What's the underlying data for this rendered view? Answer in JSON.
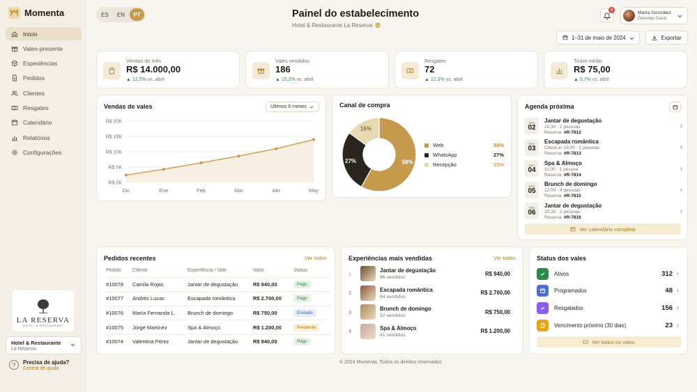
{
  "brand": {
    "name": "Momenta"
  },
  "nav": [
    {
      "label": "Início",
      "icon": "home-icon",
      "active": true
    },
    {
      "label": "Vales-presente",
      "icon": "gift-icon"
    },
    {
      "label": "Experiências",
      "icon": "cube-icon"
    },
    {
      "label": "Pedidos",
      "icon": "document-icon"
    },
    {
      "label": "Clientes",
      "icon": "users-icon"
    },
    {
      "label": "Resgates",
      "icon": "ticket-icon"
    },
    {
      "label": "Calendário",
      "icon": "calendar-icon"
    },
    {
      "label": "Relatórios",
      "icon": "bar-chart-icon"
    },
    {
      "label": "Configurações",
      "icon": "gear-icon"
    }
  ],
  "establishment": {
    "logo_name": "LA RESERVA",
    "logo_sub": "HOTEL & RESTAURANT",
    "select_title": "Hotel & Restaurante",
    "select_sub": "La Reserva"
  },
  "help": {
    "title": "Precisa de ajuda?",
    "link": "Central de ajuda"
  },
  "languages": [
    "ES",
    "EN",
    "PT"
  ],
  "active_language": "PT",
  "header": {
    "title": "Painel do estabelecimento",
    "subtitle": "Hotel & Restaurante La Reserva",
    "notification_count": "3",
    "user_name": "María González",
    "user_role": "Gerente Geral",
    "date_range": "1–31 de maio de 2024",
    "export_label": "Exportar"
  },
  "kpis": [
    {
      "label": "Vendas do mês",
      "value": "R$ 14.000,00",
      "delta": "12,5%",
      "suffix": "vs. abril",
      "icon": "bag-icon"
    },
    {
      "label": "Vales vendidos",
      "value": "186",
      "delta": "15,2%",
      "suffix": "vs. abril",
      "icon": "gift-icon"
    },
    {
      "label": "Resgates",
      "value": "72",
      "delta": "12,3%",
      "suffix": "vs. abril",
      "icon": "ticket-icon"
    },
    {
      "label": "Ticket médio",
      "value": "R$ 75,00",
      "delta": "5,7%",
      "suffix": "vs. abril",
      "icon": "bar-chart-icon"
    }
  ],
  "sales_chart": {
    "title": "Vendas de vales",
    "period": "Últimos 6 meses"
  },
  "channel_chart": {
    "title": "Canal de compra"
  },
  "chart_data": [
    {
      "type": "line",
      "title": "Vendas de vales",
      "categories": [
        "Dic",
        "Ene",
        "Feb",
        "Mar",
        "Abr",
        "May"
      ],
      "yticks": [
        "R$ 20K",
        "R$ 15K",
        "R$ 10K",
        "R$ 5K",
        "R$ 0K"
      ],
      "ylim": [
        0,
        20000
      ],
      "series": [
        {
          "values": [
            2400,
            4300,
            6400,
            8600,
            11000,
            14000
          ]
        }
      ],
      "grid": true
    },
    {
      "type": "pie",
      "title": "Canal de compra",
      "labels": [
        "Web",
        "WhatsApp",
        "Recepção"
      ],
      "values": [
        58,
        27,
        15
      ],
      "value_labels": [
        "58%",
        "27%",
        "15%"
      ],
      "colors": [
        "#c69a4c",
        "#2a261f",
        "#e8d8b4"
      ],
      "legend": "right"
    }
  ],
  "agenda": {
    "title": "Agenda próxima",
    "button": "Ver calendário completo",
    "items": [
      {
        "month": "MAI",
        "day": "02",
        "title": "Jantar de degustação",
        "meta": "20:30 · 2 pessoas",
        "res_label": "Reserva:",
        "res": "#R-7812"
      },
      {
        "month": "MAI",
        "day": "03",
        "title": "Escapada romântica",
        "meta": "Check-in 15:00 · 2 pessoas",
        "res_label": "Reserva:",
        "res": "#R-7813"
      },
      {
        "month": "MAI",
        "day": "04",
        "title": "Spa & Almoço",
        "meta": "11:00 · 1 pessoa",
        "res_label": "Reserva:",
        "res": "#R-7814"
      },
      {
        "month": "MAI",
        "day": "05",
        "title": "Brunch de domingo",
        "meta": "12:00 · 4 pessoas",
        "res_label": "Reserva:",
        "res": "#R-7815"
      },
      {
        "month": "MAI",
        "day": "06",
        "title": "Jantar de degustação",
        "meta": "20:30 · 2 pessoas",
        "res_label": "Reserva:",
        "res": "#R-7816"
      }
    ]
  },
  "orders": {
    "title": "Pedidos recentes",
    "link": "Ver todos",
    "columns": [
      "Pedido",
      "Cliente",
      "Experiência / Vale",
      "Valor",
      "Status"
    ],
    "rows": [
      {
        "id": "#10078",
        "client": "Camila Rojas",
        "exp": "Jantar de degustação",
        "value": "R$ 940,00",
        "status": "Pago",
        "tone": "green"
      },
      {
        "id": "#10077",
        "client": "Andrés Lucas",
        "exp": "Escapada romântica",
        "value": "R$ 2.700,00",
        "status": "Pago",
        "tone": "green"
      },
      {
        "id": "#10076",
        "client": "María Fernanda L.",
        "exp": "Brunch de domingo",
        "value": "R$ 750,00",
        "status": "Enviado",
        "tone": "blue"
      },
      {
        "id": "#10075",
        "client": "Jorge Martínez",
        "exp": "Spa & Almoço",
        "value": "R$ 1.200,00",
        "status": "Pendente",
        "tone": "yellow"
      },
      {
        "id": "#10074",
        "client": "Valentina Pérez",
        "exp": "Jantar de degustação",
        "value": "R$ 940,00",
        "status": "Pago",
        "tone": "green"
      }
    ]
  },
  "top_experiences": {
    "title": "Experiências mais vendidas",
    "link": "Ver todas",
    "items": [
      {
        "rank": "1",
        "name": "Jantar de degustação",
        "sold": "86 vendidos",
        "price": "R$ 940,00",
        "color": "#6b4a2e"
      },
      {
        "rank": "2",
        "name": "Escapada romântica",
        "sold": "64 vendidos",
        "price": "R$ 2.700,00",
        "color": "#8a5a3c"
      },
      {
        "rank": "3",
        "name": "Brunch de domingo",
        "sold": "52 vendidos",
        "price": "R$ 750,00",
        "color": "#b08a5a"
      },
      {
        "rank": "4",
        "name": "Spa & Almoço",
        "sold": "41 vendidos",
        "price": "R$ 1.200,00",
        "color": "#c9a9a0"
      }
    ]
  },
  "voucher_status": {
    "title": "Status dos vales",
    "button": "Ver todos os vales",
    "items": [
      {
        "label": "Ativos",
        "count": "312",
        "color": "#2e8a4a",
        "icon": "check-icon"
      },
      {
        "label": "Programados",
        "count": "48",
        "color": "#4a6fd6",
        "icon": "calendar-icon"
      },
      {
        "label": "Resgatados",
        "count": "156",
        "color": "#8a5cf0",
        "icon": "check-icon"
      },
      {
        "label": "Vencimento próximo (30 dias)",
        "count": "23",
        "color": "#e7a413",
        "icon": "clock-icon"
      }
    ]
  },
  "footer": "© 2024 Momenta. Todos os direitos reservados."
}
